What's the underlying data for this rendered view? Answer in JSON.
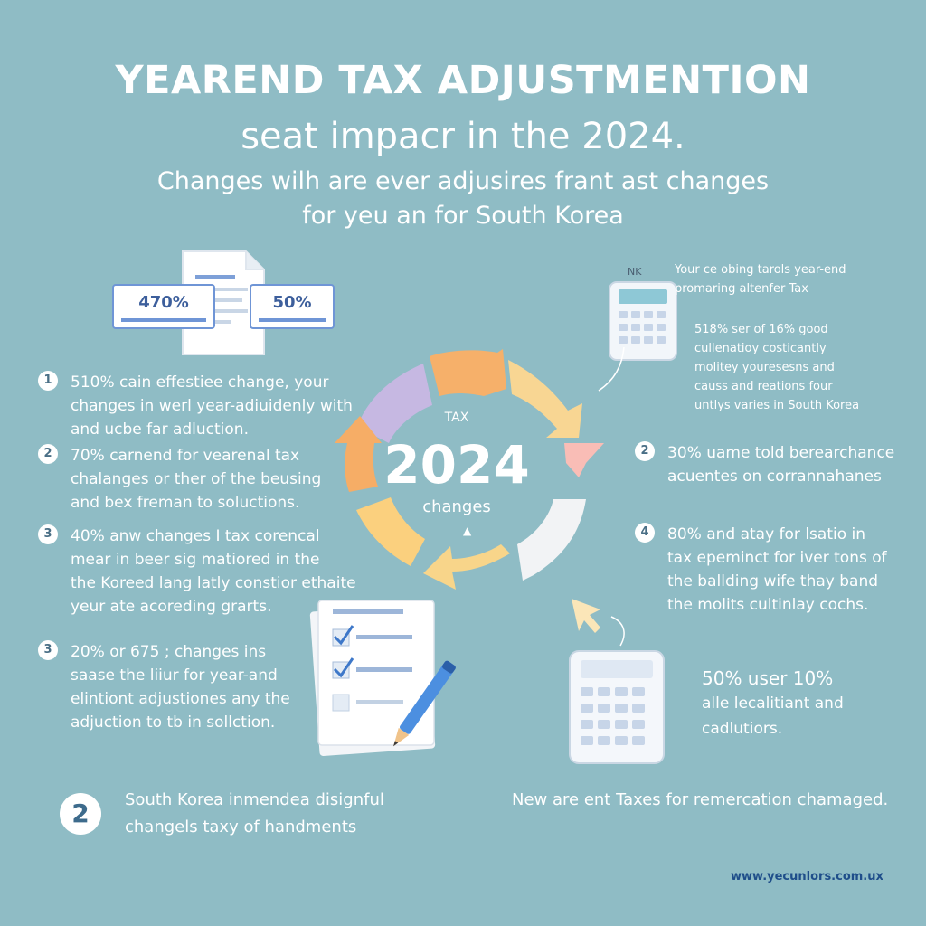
{
  "header": {
    "title": "YEAREND TAX ADJUSTMENTION",
    "subtitle": "seat impacr in the 2024.",
    "intro_line1": "Changes wilh are ever adjusires frant ast changes",
    "intro_line2": "for yeu an for South Korea"
  },
  "top_left_cards": {
    "left_value": "470%",
    "right_value": "50%"
  },
  "top_right": {
    "calc_tag": "NK",
    "heading_line1": "Your ce obing tarols year-end",
    "heading_line2": "promaring altenfer Tax",
    "body_line1": "518% ser of 16% good",
    "body_line2": "cullenatioy costicantly",
    "body_line3": "molitey youresesns and",
    "body_line4": "causs and reations four",
    "body_line5": "untlys varies in South Korea"
  },
  "center_cycle": {
    "label_top": "TAX",
    "year": "2024",
    "label_bottom": "changes",
    "segment_colors": [
      "#c6b8e2",
      "#f6b06a",
      "#f8d693",
      "#f9bdb6",
      "#f2f3f5",
      "#f8d58a",
      "#fbd07e",
      "#f6ad66"
    ]
  },
  "left_items": [
    {
      "num": "1",
      "l1": "510% cain effestiee change, your",
      "l2": "changes in werl year-adiuidenly with",
      "l3": "and ucbe far adluction.",
      "l4": ""
    },
    {
      "num": "2",
      "l1": "70% carnend for vearenal tax",
      "l2": "chalanges or ther of the beusing",
      "l3": "and bex freman to soluctions.",
      "l4": ""
    },
    {
      "num": "3",
      "l1": "40% anw changes I tax corencal",
      "l2": "mear in beer sig matiored in the",
      "l3": "the Koreed lang latly constior ethaite",
      "l4": "yeur ate acoreding grarts."
    },
    {
      "num": "3",
      "l1": "20% or 675 ; changes ins",
      "l2": "saase the liiur for year-and",
      "l3": "elintiont adjustiones any the",
      "l4": "adjuction to tb in sollction."
    }
  ],
  "right_items": [
    {
      "num": "2",
      "l1": "30% uame told berearchance",
      "l2": "acuentes on corrannahanes",
      "l3": "",
      "l4": ""
    },
    {
      "num": "4",
      "l1": "80% and atay for lsatio in",
      "l2": "tax epeminct for iver tons of",
      "l3": "the ballding wife thay band",
      "l4": "the molits cultinlay cochs."
    }
  ],
  "lower_right": {
    "line1": "50% user 10%",
    "line2": "alle lecalitiant and",
    "line3": "cadlutiors."
  },
  "footer": {
    "badge": "2",
    "left_line1": "South Korea inmendea disignful",
    "left_line2": "changels taxy of handments",
    "right_text": "New are ent Taxes for remercation chamaged.",
    "url": "www.yecunlors.com.ux"
  },
  "icons": {
    "document": "document-icon",
    "calculator": "calculator-icon",
    "checklist": "checklist-icon",
    "pencil": "pencil-icon",
    "cursor": "cursor-arrow-icon"
  }
}
